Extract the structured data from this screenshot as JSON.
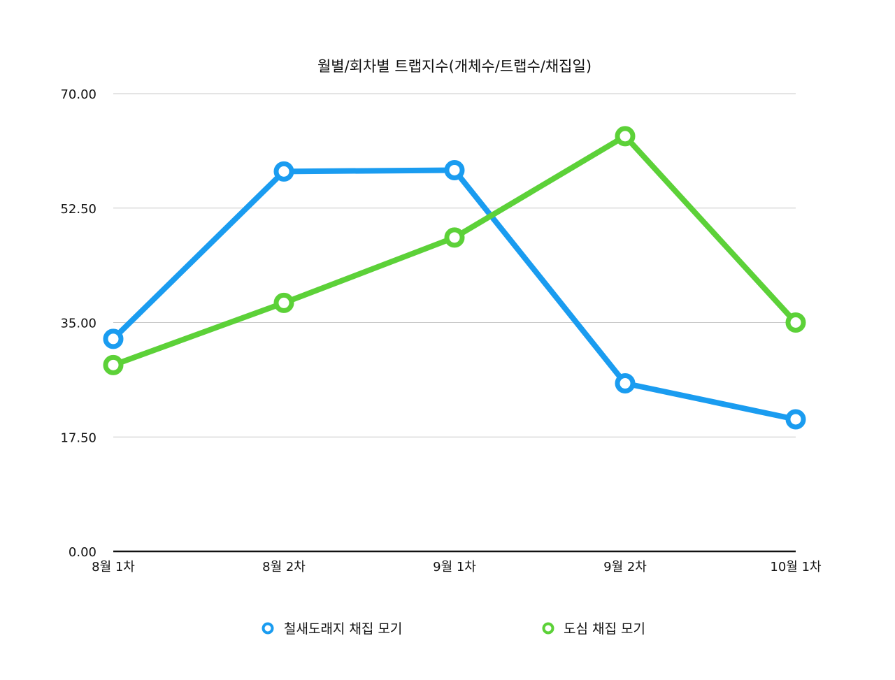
{
  "chart_data": {
    "type": "line",
    "title": "월별/회차별 트랩지수(개체수/트랩수/채집일)",
    "xlabel": "",
    "ylabel": "",
    "categories": [
      "8월 1차",
      "8월 2차",
      "9월 1차",
      "9월 2차",
      "10월 1차"
    ],
    "y_ticks": [
      "0.00",
      "17.50",
      "35.00",
      "52.50",
      "70.00"
    ],
    "ylim": [
      0,
      70
    ],
    "grid": true,
    "legend_position": "bottom",
    "series": [
      {
        "name": "철새도래지 채집 모기",
        "color": "#1a9cf0",
        "values": [
          32.5,
          58.1,
          58.3,
          25.7,
          20.2
        ]
      },
      {
        "name": "도심 채집 모기",
        "color": "#5cd138",
        "values": [
          28.5,
          38.0,
          48.0,
          63.5,
          35.0
        ]
      }
    ]
  }
}
